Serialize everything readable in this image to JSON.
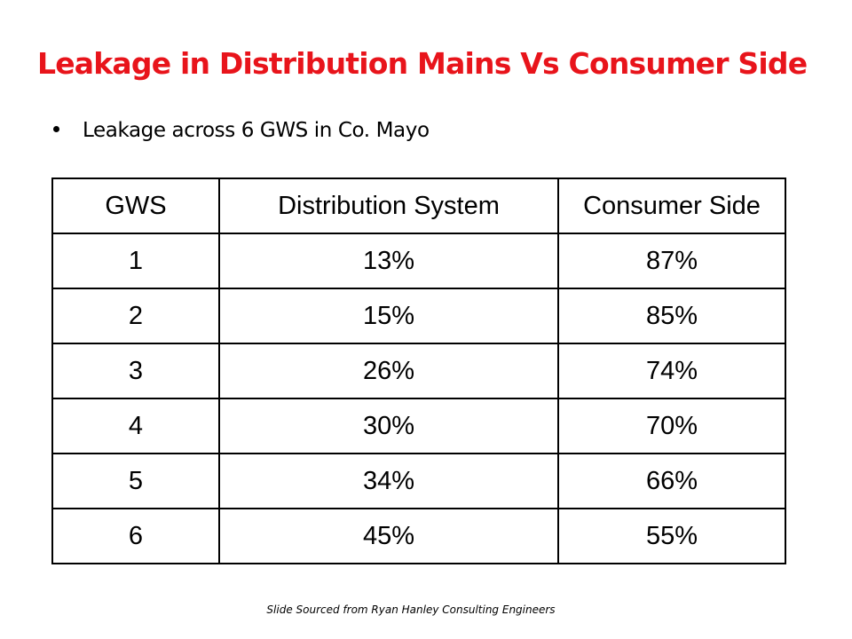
{
  "slide": {
    "title": "Leakage in Distribution Mains Vs Consumer Side",
    "bullets": [
      "Leakage across 6 GWS in Co. Mayo"
    ],
    "footer": "Slide Sourced from Ryan Hanley Consulting Engineers",
    "title_color": "#e8141b"
  },
  "table": {
    "headers": [
      "GWS",
      "Distribution  System",
      "Consumer Side"
    ],
    "rows": [
      [
        "1",
        "13%",
        "87%"
      ],
      [
        "2",
        "15%",
        "85%"
      ],
      [
        "3",
        "26%",
        "74%"
      ],
      [
        "4",
        "30%",
        "70%"
      ],
      [
        "5",
        "34%",
        "66%"
      ],
      [
        "6",
        "45%",
        "55%"
      ]
    ]
  }
}
